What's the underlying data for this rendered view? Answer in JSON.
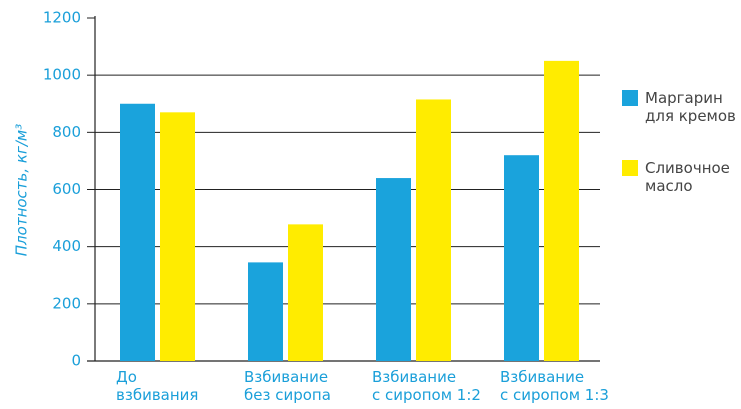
{
  "chart_data": {
    "type": "bar",
    "y_label": "Плотность, кг/м³",
    "categories": [
      "До\nвзбивания",
      "Взбивание\nбез сиропа",
      "Взбивание\nс сиропом 1:2",
      "Взбивание\nс сиропом 1:3"
    ],
    "series": [
      {
        "name": "Маргарин\nдля кремов",
        "color": "#1aa3dc",
        "values": [
          900,
          345,
          640,
          720
        ]
      },
      {
        "name": "Сливочное\nмасло",
        "color": "#ffec00",
        "values": [
          870,
          478,
          915,
          1050
        ]
      }
    ],
    "ylim": [
      0,
      1200
    ],
    "yticks": [
      0,
      200,
      400,
      600,
      800,
      1000,
      1200
    ],
    "grid": true
  }
}
